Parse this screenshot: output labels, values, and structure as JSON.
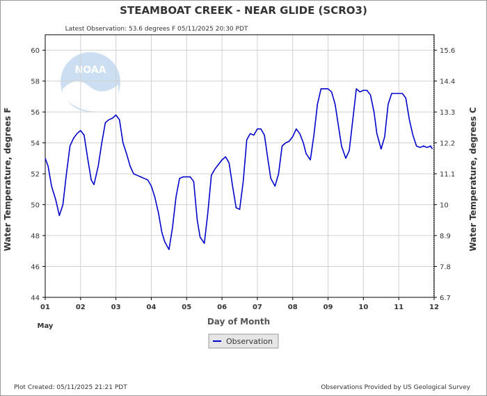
{
  "title": "STEAMBOAT CREEK - NEAR GLIDE  (SCRO3)",
  "latest_observation": "Latest Observation: 53.6 degrees F  05/11/2025 20:30 PDT",
  "plot_created": "Plot Created: 05/11/2025 21:21 PDT",
  "provider": "Observations Provided by US Geological Survey",
  "colors": {
    "series": "#0000cc",
    "grid": "#d0d0d0",
    "text": "#333333",
    "axis": "#000000",
    "logo": "#1a6fc4"
  },
  "chart_data": {
    "type": "line",
    "xlabel": "Day of Month",
    "x_month_label": "May",
    "ylabel": "Water Temperature, degrees F",
    "y2label": "Water Temperature, degrees C",
    "xlim": [
      1,
      12
    ],
    "ylim": [
      44,
      61
    ],
    "x_ticks": [
      "01",
      "02",
      "03",
      "04",
      "05",
      "06",
      "07",
      "08",
      "09",
      "10",
      "11",
      "12"
    ],
    "y_ticks": [
      44,
      46,
      48,
      50,
      52,
      54,
      56,
      58,
      60
    ],
    "y2_ticks": [
      "6.7",
      "7.8",
      "8.9",
      "10",
      "11.1",
      "12.2",
      "13.3",
      "14.4",
      "15.6"
    ],
    "grid": true,
    "legend": "bottom-center",
    "series": [
      {
        "name": "Observation",
        "x": [
          1.0,
          1.08,
          1.18,
          1.3,
          1.4,
          1.5,
          1.6,
          1.7,
          1.8,
          1.9,
          2.0,
          2.1,
          2.2,
          2.3,
          2.38,
          2.5,
          2.6,
          2.7,
          2.8,
          2.9,
          3.0,
          3.1,
          3.2,
          3.3,
          3.4,
          3.5,
          3.6,
          3.7,
          3.8,
          3.9,
          4.0,
          4.1,
          4.2,
          4.3,
          4.38,
          4.5,
          4.6,
          4.7,
          4.8,
          4.9,
          5.0,
          5.1,
          5.2,
          5.3,
          5.38,
          5.5,
          5.6,
          5.7,
          5.8,
          5.9,
          6.0,
          6.1,
          6.2,
          6.3,
          6.4,
          6.5,
          6.6,
          6.7,
          6.8,
          6.9,
          7.0,
          7.1,
          7.2,
          7.3,
          7.38,
          7.5,
          7.6,
          7.7,
          7.8,
          7.9,
          8.0,
          8.1,
          8.2,
          8.3,
          8.38,
          8.5,
          8.6,
          8.7,
          8.8,
          8.9,
          9.0,
          9.1,
          9.2,
          9.3,
          9.38,
          9.5,
          9.6,
          9.7,
          9.8,
          9.9,
          10.0,
          10.1,
          10.2,
          10.3,
          10.38,
          10.5,
          10.6,
          10.7,
          10.8,
          10.9,
          11.0,
          11.1,
          11.2,
          11.3,
          11.4,
          11.5,
          11.6,
          11.7,
          11.8,
          11.9,
          11.95
        ],
        "y": [
          53.0,
          52.5,
          51.2,
          50.3,
          49.3,
          50.0,
          52.0,
          53.8,
          54.3,
          54.6,
          54.8,
          54.5,
          53.0,
          51.6,
          51.3,
          52.5,
          54.0,
          55.3,
          55.5,
          55.6,
          55.8,
          55.5,
          54.0,
          53.3,
          52.5,
          52.0,
          51.9,
          51.8,
          51.7,
          51.6,
          51.2,
          50.5,
          49.5,
          48.2,
          47.6,
          47.1,
          48.5,
          50.5,
          51.7,
          51.8,
          51.8,
          51.8,
          51.5,
          49.0,
          47.9,
          47.5,
          49.5,
          51.9,
          52.3,
          52.6,
          52.9,
          53.1,
          52.7,
          51.2,
          49.8,
          49.7,
          51.5,
          54.2,
          54.6,
          54.5,
          54.9,
          54.9,
          54.5,
          52.9,
          51.7,
          51.2,
          52.0,
          53.8,
          54.0,
          54.1,
          54.4,
          54.9,
          54.6,
          54.0,
          53.3,
          52.9,
          54.5,
          56.5,
          57.5,
          57.5,
          57.5,
          57.3,
          56.5,
          55.0,
          53.8,
          53.0,
          53.5,
          55.5,
          57.5,
          57.3,
          57.4,
          57.4,
          57.1,
          56.0,
          54.6,
          53.6,
          54.4,
          56.5,
          57.2,
          57.2,
          57.2,
          57.2,
          56.9,
          55.5,
          54.5,
          53.8,
          53.7,
          53.8,
          53.7,
          53.8,
          53.6
        ]
      }
    ]
  }
}
